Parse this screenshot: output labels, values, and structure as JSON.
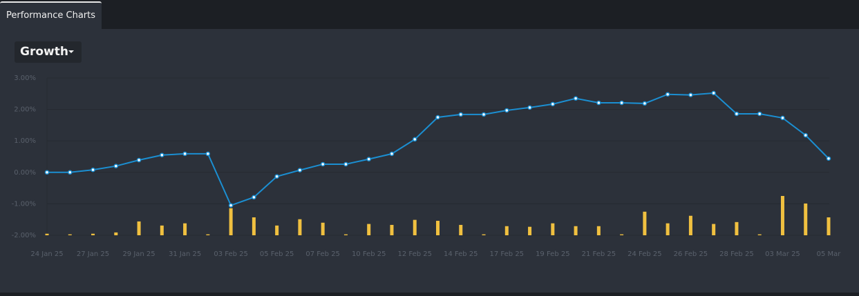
{
  "tab": "Performance Charts",
  "dropdown": "Growth",
  "chart_data": {
    "type": "line",
    "categories": [
      "24 Jan 25",
      null,
      "27 Jan 25",
      null,
      "29 Jan 25",
      null,
      "31 Jan 25",
      null,
      "03 Feb 25",
      null,
      "05 Feb 25",
      null,
      "07 Feb 25",
      null,
      "10 Feb 25",
      null,
      "12 Feb 25",
      null,
      "14 Feb 25",
      null,
      "17 Feb 25",
      null,
      "19 Feb 25",
      null,
      "21 Feb 25",
      null,
      "24 Feb 25",
      null,
      "26 Feb 25",
      null,
      "28 Feb 25",
      null,
      "03 Mar 25",
      null,
      "05 Mar"
    ],
    "series": [
      {
        "type": "line",
        "color": "#1b8fd2",
        "values": [
          0.0,
          0.0,
          0.08,
          0.2,
          0.39,
          0.55,
          0.59,
          0.59,
          -1.05,
          -0.79,
          -0.13,
          0.07,
          0.26,
          0.26,
          0.42,
          0.59,
          1.05,
          1.75,
          1.84,
          1.84,
          1.97,
          2.06,
          2.17,
          2.35,
          2.21,
          2.21,
          2.19,
          2.48,
          2.46,
          2.52,
          1.86,
          1.86,
          1.73,
          1.18,
          0.44
        ]
      },
      {
        "type": "bar",
        "color": "#f0c040",
        "values": [
          -1.95,
          -1.97,
          -1.95,
          -1.91,
          -1.56,
          -1.69,
          -1.62,
          -1.97,
          -1.14,
          -1.43,
          -1.69,
          -1.49,
          -1.6,
          -1.97,
          -1.64,
          -1.67,
          -1.51,
          -1.54,
          -1.67,
          -1.97,
          -1.71,
          -1.73,
          -1.62,
          -1.71,
          -1.71,
          -1.97,
          -1.25,
          -1.62,
          -1.38,
          -1.64,
          -1.58,
          -1.97,
          -0.75,
          -0.99,
          -1.43
        ]
      }
    ],
    "ylim": [
      -2,
      3
    ],
    "yticks": [
      {
        "value": 3,
        "label": "3.00%"
      },
      {
        "value": 2,
        "label": "2.00%"
      },
      {
        "value": 1,
        "label": "1.00%"
      },
      {
        "value": 0,
        "label": "0.00%"
      },
      {
        "value": -1,
        "label": "-1.00%"
      },
      {
        "value": -2,
        "label": "-2.00%"
      }
    ],
    "grid": true
  }
}
